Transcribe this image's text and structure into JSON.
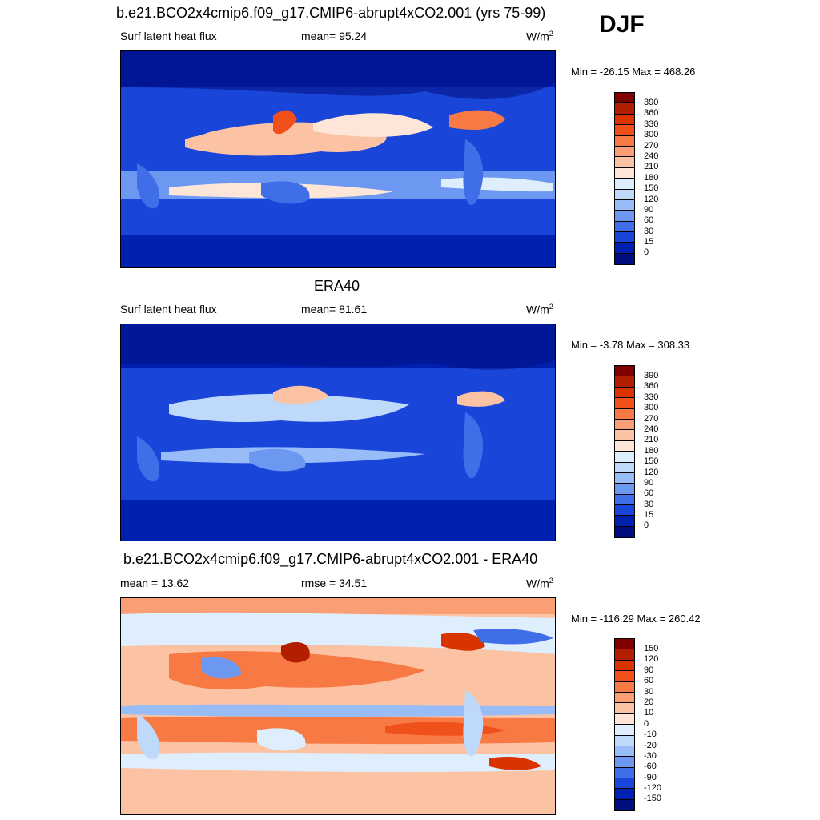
{
  "season": "DJF",
  "panels": [
    {
      "title": "b.e21.BCO2x4cmip6.f09_g17.CMIP6-abrupt4xCO2.001 (yrs 75-99)",
      "left_label": "Surf latent heat flux",
      "mid_label": "mean=  95.24",
      "units": "W/m",
      "units_sup": "2",
      "minmax": "Min = -26.15 Max = 468.26",
      "colorbar_labels": [
        "390",
        "360",
        "330",
        "300",
        "270",
        "240",
        "210",
        "180",
        "150",
        "120",
        "90",
        "60",
        "30",
        "15",
        "0"
      ],
      "colors": [
        "#7f0000",
        "#b21f00",
        "#d93300",
        "#f0501a",
        "#f77a45",
        "#fa9e75",
        "#fcc2a4",
        "#fde6d8",
        "#dfeefc",
        "#bfd9fb",
        "#97bcf8",
        "#6c98f2",
        "#3f6ee8",
        "#1a45d9",
        "#0020b0",
        "#000f80"
      ]
    },
    {
      "title": "ERA40",
      "left_label": "Surf latent heat flux",
      "mid_label": "mean=  81.61",
      "units": "W/m",
      "units_sup": "2",
      "minmax": "Min =  -3.78 Max = 308.33",
      "colorbar_labels": [
        "390",
        "360",
        "330",
        "300",
        "270",
        "240",
        "210",
        "180",
        "150",
        "120",
        "90",
        "60",
        "30",
        "15",
        "0"
      ],
      "colors": [
        "#7f0000",
        "#b21f00",
        "#d93300",
        "#f0501a",
        "#f77a45",
        "#fa9e75",
        "#fcc2a4",
        "#fde6d8",
        "#dfeefc",
        "#bfd9fb",
        "#97bcf8",
        "#6c98f2",
        "#3f6ee8",
        "#1a45d9",
        "#0020b0",
        "#000f80"
      ]
    },
    {
      "title": "b.e21.BCO2x4cmip6.f09_g17.CMIP6-abrupt4xCO2.001 - ERA40",
      "left_label": "mean =  13.62",
      "mid_label": "rmse =  34.51",
      "units": "W/m",
      "units_sup": "2",
      "minmax": "Min = -116.29 Max = 260.42",
      "colorbar_labels": [
        "150",
        "120",
        "90",
        "60",
        "30",
        "20",
        "10",
        "0",
        "-10",
        "-20",
        "-30",
        "-60",
        "-90",
        "-120",
        "-150"
      ],
      "colors": [
        "#7f0000",
        "#b21f00",
        "#d93300",
        "#f0501a",
        "#f77a45",
        "#fa9e75",
        "#fcc2a4",
        "#fde6d8",
        "#dfeefc",
        "#bfd9fb",
        "#97bcf8",
        "#6c98f2",
        "#3f6ee8",
        "#1a45d9",
        "#0020b0",
        "#000f80"
      ]
    }
  ]
}
